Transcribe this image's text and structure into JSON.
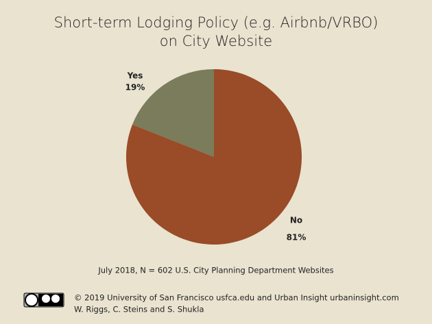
{
  "chart_data": {
    "type": "pie",
    "title": "Short-term Lodging Policy (e.g. Airbnb/VRBO) on City Website",
    "categories": [
      "No",
      "Yes"
    ],
    "values": [
      81,
      19
    ],
    "value_labels": [
      "81%",
      "19%"
    ],
    "colors": [
      "#9a4b28",
      "#7a7c5c"
    ],
    "note": "July 2018, N = 602 U.S. City Planning Department Websites",
    "credits": [
      "© 2019 University of San Francisco usfca.edu and Urban Insight urbaninsight.com",
      "W. Riggs, C. Steins and S. Shukla"
    ]
  }
}
